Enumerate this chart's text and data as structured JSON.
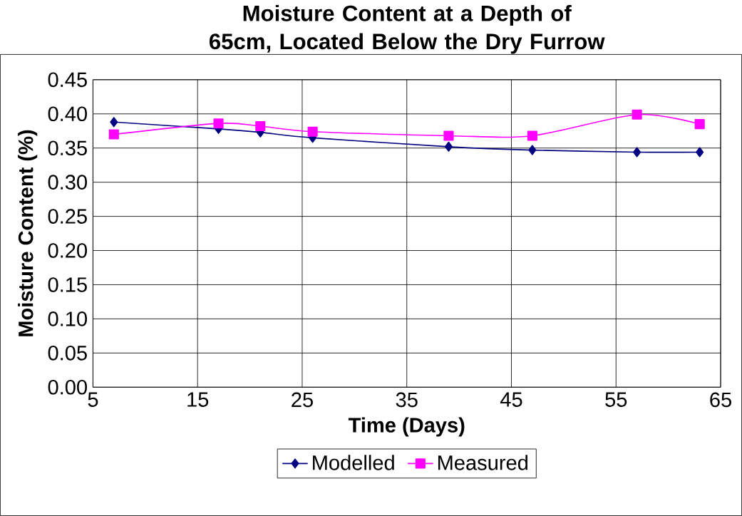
{
  "chart_data": {
    "type": "line",
    "title": "Moisture Content at a Depth of 65cm, Located Below the Dry Furrow",
    "xlabel": "Time (Days)",
    "ylabel": "Moisture Content (%)",
    "x": [
      7,
      17,
      21,
      26,
      39,
      47,
      57,
      63
    ],
    "series": [
      {
        "name": "Modelled",
        "color": "#000080",
        "marker": "diamond",
        "values": [
          0.388,
          0.378,
          0.373,
          0.365,
          0.352,
          0.347,
          0.344,
          0.344
        ]
      },
      {
        "name": "Measured",
        "color": "#ff00ff",
        "marker": "square",
        "values": [
          0.37,
          0.386,
          0.382,
          0.374,
          0.368,
          0.368,
          0.399,
          0.385
        ]
      }
    ],
    "xlim": [
      5,
      65
    ],
    "xticks": [
      5,
      15,
      25,
      35,
      45,
      55,
      65
    ],
    "ylim": [
      0,
      0.45
    ],
    "yticks": [
      {
        "value": 0,
        "label": "0.00"
      },
      {
        "value": 0.05,
        "label": "0.05"
      },
      {
        "value": 0.1,
        "label": "0.10"
      },
      {
        "value": 0.15,
        "label": "0.15"
      },
      {
        "value": 0.2,
        "label": "0.20"
      },
      {
        "value": 0.25,
        "label": "0.25"
      },
      {
        "value": 0.3,
        "label": "0.30"
      },
      {
        "value": 0.35,
        "label": "0.35"
      },
      {
        "value": 0.4,
        "label": "0.40"
      },
      {
        "value": 0.45,
        "label": "0.45"
      }
    ],
    "grid": true,
    "legend": "bottom",
    "line_style": "solid"
  }
}
